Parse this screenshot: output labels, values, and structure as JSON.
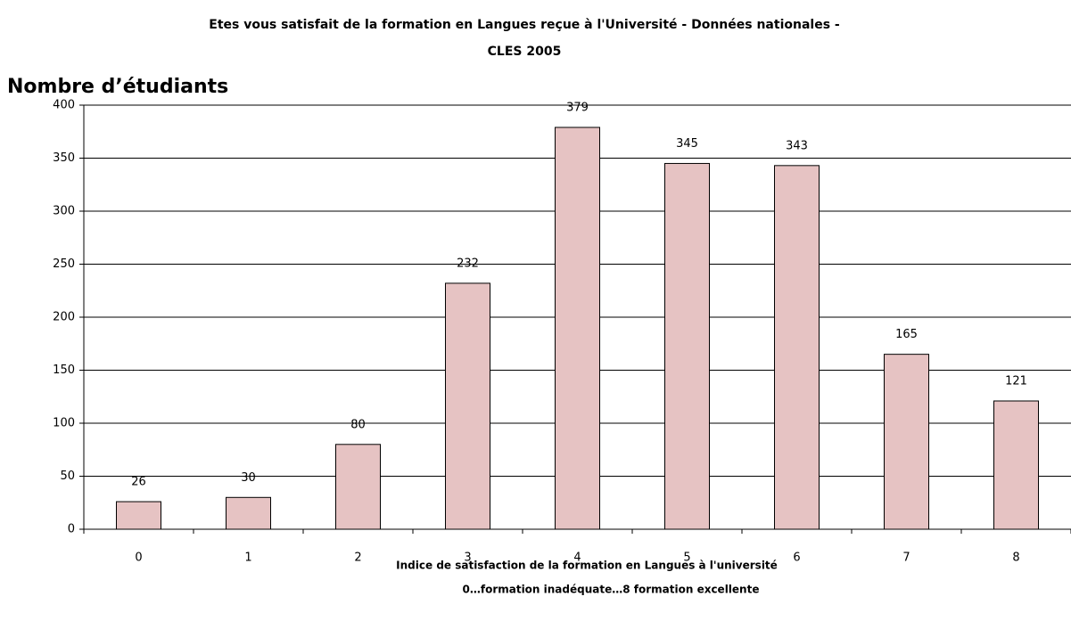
{
  "chart_data": {
    "type": "bar",
    "title": [
      "Etes vous satisfait de la formation en Langues reçue à l'Université - Données nationales  -",
      "CLES 2005"
    ],
    "y_label": "Nombre d’étudiants",
    "x_label": [
      "Indice de satisfaction de la formation en Langues à  l'université",
      "0…formation inadéquate…8 formation excellente"
    ],
    "categories": [
      "0",
      "1",
      "2",
      "3",
      "4",
      "5",
      "6",
      "7",
      "8"
    ],
    "values": [
      26,
      30,
      80,
      232,
      379,
      345,
      343,
      165,
      121
    ],
    "color": "#e6c3c3",
    "ylim": [
      0,
      400
    ],
    "yticks": [
      0,
      50,
      100,
      150,
      200,
      250,
      300,
      350,
      400
    ],
    "grid": true
  }
}
